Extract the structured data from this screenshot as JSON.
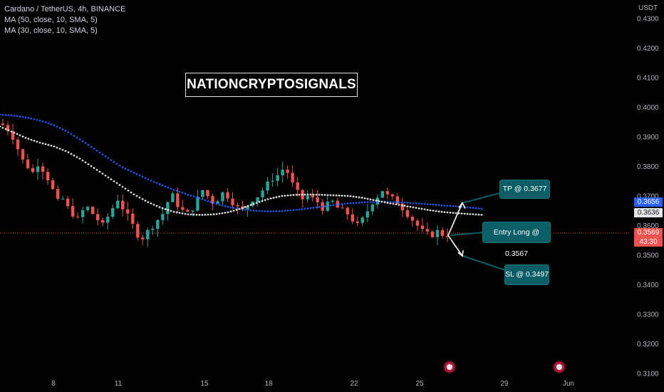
{
  "header": {
    "symbol_line": "Cardano / TetherUS, 4h, BINANCE",
    "ma1_line": "MA (50, close, 10, SMA, 5)",
    "ma2_line": "MA (30, close, 10, SMA, 5)",
    "currency": "USDT"
  },
  "watermark": "NATIONCRYPTOSIGNALS",
  "annotations": {
    "tp": "TP @ 0.3677",
    "entry": "Entry Long @ 0.3567",
    "sl": "SL @ 0.3497"
  },
  "price_tags": {
    "ma_blue": "0.3656",
    "ma_white": "0.3636",
    "last_price": "0.3569",
    "countdown": "43:30"
  },
  "colors": {
    "up": "#26a69a",
    "down": "#ef5350",
    "ma_blue": "#2962ff",
    "ma_white": "#ffffff",
    "callout": "#0b5e66"
  },
  "chart_data": {
    "type": "candlestick",
    "y_ticks": [
      "0.4300",
      "0.4200",
      "0.4100",
      "0.4000",
      "0.3900",
      "0.3800",
      "0.3700",
      "0.3600",
      "0.3500",
      "0.3400",
      "0.3300",
      "0.3200",
      "0.3100"
    ],
    "x_ticks": [
      "8",
      "11",
      "15",
      "18",
      "22",
      "25",
      "29",
      "Jun"
    ],
    "ylim": [
      0.309,
      0.4345
    ],
    "close_path": [
      0.394,
      0.3925,
      0.39,
      0.386,
      0.382,
      0.38,
      0.378,
      0.381,
      0.379,
      0.376,
      0.372,
      0.368,
      0.369,
      0.366,
      0.364,
      0.362,
      0.365,
      0.366,
      0.364,
      0.362,
      0.36,
      0.363,
      0.366,
      0.369,
      0.366,
      0.363,
      0.36,
      0.357,
      0.356,
      0.358,
      0.36,
      0.362,
      0.364,
      0.368,
      0.37,
      0.367,
      0.365,
      0.364,
      0.366,
      0.369,
      0.372,
      0.37,
      0.368,
      0.369,
      0.371,
      0.37,
      0.368,
      0.366,
      0.365,
      0.367,
      0.369,
      0.37,
      0.372,
      0.374,
      0.376,
      0.377,
      0.379,
      0.378,
      0.374,
      0.371,
      0.369,
      0.37,
      0.369,
      0.368,
      0.366,
      0.367,
      0.368,
      0.366,
      0.365,
      0.364,
      0.362,
      0.36,
      0.362,
      0.365,
      0.368,
      0.37,
      0.372,
      0.37,
      0.369,
      0.368,
      0.366,
      0.364,
      0.362,
      0.36,
      0.358,
      0.357,
      0.357,
      0.358,
      0.357,
      0.3569
    ],
    "ma_blue": [
      0.3975,
      0.3972,
      0.3965,
      0.3955,
      0.394,
      0.3918,
      0.389,
      0.386,
      0.383,
      0.38,
      0.3778,
      0.3757,
      0.3738,
      0.372,
      0.3705,
      0.369,
      0.3675,
      0.3663,
      0.3655,
      0.365,
      0.3648,
      0.3649,
      0.3653,
      0.3658,
      0.3664,
      0.367,
      0.3675,
      0.3678,
      0.368,
      0.368,
      0.3678,
      0.3675,
      0.3672,
      0.3668,
      0.3665,
      0.3661,
      0.3656
    ],
    "ma_white": [
      0.3935,
      0.3915,
      0.3895,
      0.388,
      0.3868,
      0.385,
      0.3825,
      0.3795,
      0.3765,
      0.3735,
      0.3705,
      0.368,
      0.366,
      0.3646,
      0.3638,
      0.3636,
      0.3638,
      0.3645,
      0.3658,
      0.3675,
      0.369,
      0.37,
      0.3704,
      0.3705,
      0.3704,
      0.3702,
      0.37,
      0.3694,
      0.3685,
      0.3676,
      0.3668,
      0.366,
      0.3652,
      0.3646,
      0.3642,
      0.3639,
      0.3636
    ],
    "tp": 0.3677,
    "entry": 0.3567,
    "sl": 0.3497
  }
}
